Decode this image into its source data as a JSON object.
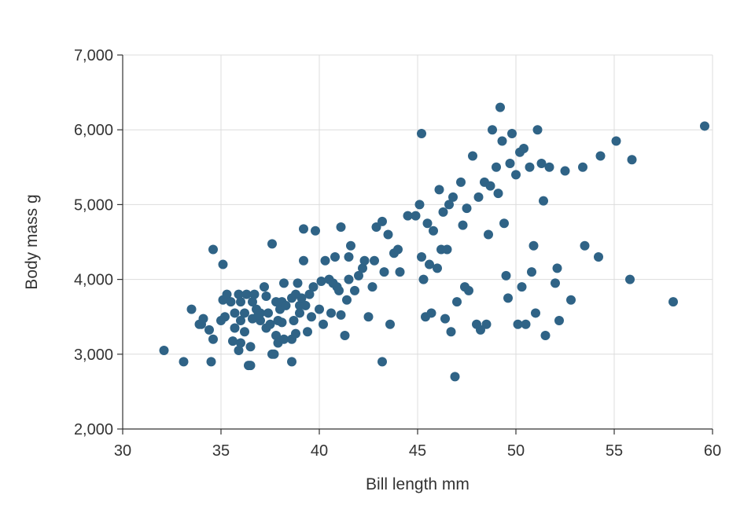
{
  "chart_data": {
    "type": "scatter",
    "xlabel": "Bill length mm",
    "ylabel": "Body mass g",
    "xlim": [
      30,
      60
    ],
    "ylim": [
      2000,
      7000
    ],
    "xticks": [
      "30",
      "35",
      "40",
      "45",
      "50",
      "55",
      "60"
    ],
    "yticks": [
      "2,000",
      "3,000",
      "4,000",
      "5,000",
      "6,000",
      "7,000"
    ],
    "grid": true,
    "point_color": "#2f6386",
    "points": [
      [
        32.1,
        3050
      ],
      [
        33.1,
        2900
      ],
      [
        33.5,
        3600
      ],
      [
        34.0,
        3400
      ],
      [
        34.1,
        3475
      ],
      [
        34.4,
        3325
      ],
      [
        34.5,
        2900
      ],
      [
        34.6,
        3200
      ],
      [
        34.6,
        4400
      ],
      [
        35.0,
        3450
      ],
      [
        35.1,
        4200
      ],
      [
        35.1,
        3725
      ],
      [
        35.3,
        3800
      ],
      [
        35.5,
        3700
      ],
      [
        35.6,
        3175
      ],
      [
        35.7,
        3350
      ],
      [
        35.7,
        3550
      ],
      [
        35.9,
        3800
      ],
      [
        35.9,
        3050
      ],
      [
        36.0,
        3150
      ],
      [
        36.0,
        3450
      ],
      [
        36.0,
        3700
      ],
      [
        36.2,
        3300
      ],
      [
        36.2,
        3550
      ],
      [
        36.3,
        3800
      ],
      [
        36.4,
        2850
      ],
      [
        36.5,
        3100
      ],
      [
        36.5,
        2850
      ],
      [
        36.6,
        3700
      ],
      [
        36.6,
        3475
      ],
      [
        36.7,
        3800
      ],
      [
        36.8,
        3600
      ],
      [
        37.0,
        3450
      ],
      [
        37.0,
        3550
      ],
      [
        37.2,
        3900
      ],
      [
        37.3,
        3775
      ],
      [
        37.3,
        3350
      ],
      [
        37.5,
        3400
      ],
      [
        37.6,
        4475
      ],
      [
        37.6,
        3000
      ],
      [
        37.7,
        3000
      ],
      [
        37.8,
        3700
      ],
      [
        37.8,
        3250
      ],
      [
        37.9,
        3150
      ],
      [
        37.9,
        3450
      ],
      [
        38.0,
        3600
      ],
      [
        38.1,
        3700
      ],
      [
        38.1,
        3425
      ],
      [
        38.2,
        3950
      ],
      [
        38.2,
        3200
      ],
      [
        38.6,
        3750
      ],
      [
        38.6,
        3200
      ],
      [
        38.6,
        2900
      ],
      [
        38.7,
        3450
      ],
      [
        38.8,
        3800
      ],
      [
        38.8,
        3275
      ],
      [
        38.9,
        3950
      ],
      [
        39.0,
        3550
      ],
      [
        39.0,
        3650
      ],
      [
        39.1,
        3750
      ],
      [
        39.2,
        4675
      ],
      [
        39.2,
        4250
      ],
      [
        39.3,
        3650
      ],
      [
        39.5,
        3800
      ],
      [
        39.6,
        3500
      ],
      [
        39.7,
        3900
      ],
      [
        39.8,
        4650
      ],
      [
        40.1,
        3975
      ],
      [
        40.2,
        3400
      ],
      [
        40.3,
        4250
      ],
      [
        40.5,
        4000
      ],
      [
        40.6,
        3550
      ],
      [
        40.7,
        3950
      ],
      [
        40.8,
        4300
      ],
      [
        40.9,
        3900
      ],
      [
        41.1,
        4700
      ],
      [
        41.1,
        3525
      ],
      [
        41.3,
        3250
      ],
      [
        41.4,
        3725
      ],
      [
        41.5,
        4300
      ],
      [
        41.5,
        4000
      ],
      [
        41.6,
        4450
      ],
      [
        42.0,
        4050
      ],
      [
        42.2,
        4150
      ],
      [
        42.3,
        4250
      ],
      [
        42.5,
        3500
      ],
      [
        42.8,
        4250
      ],
      [
        42.9,
        4700
      ],
      [
        43.2,
        4775
      ],
      [
        43.2,
        2900
      ],
      [
        43.3,
        4100
      ],
      [
        43.5,
        4600
      ],
      [
        43.8,
        4350
      ],
      [
        44.0,
        4400
      ],
      [
        44.1,
        4100
      ],
      [
        44.5,
        4850
      ],
      [
        45.1,
        5000
      ],
      [
        45.2,
        5950
      ],
      [
        45.2,
        4300
      ],
      [
        45.3,
        4000
      ],
      [
        45.4,
        3500
      ],
      [
        45.5,
        4750
      ],
      [
        45.6,
        4200
      ],
      [
        45.8,
        4650
      ],
      [
        46.0,
        4150
      ],
      [
        46.1,
        5200
      ],
      [
        46.2,
        4400
      ],
      [
        46.4,
        3475
      ],
      [
        46.5,
        4400
      ],
      [
        46.6,
        5000
      ],
      [
        46.8,
        5100
      ],
      [
        46.9,
        2700
      ],
      [
        47.0,
        3700
      ],
      [
        47.3,
        4725
      ],
      [
        47.5,
        4950
      ],
      [
        47.6,
        3850
      ],
      [
        47.8,
        5650
      ],
      [
        48.1,
        5100
      ],
      [
        48.2,
        3325
      ],
      [
        48.4,
        5300
      ],
      [
        48.5,
        3400
      ],
      [
        48.7,
        5250
      ],
      [
        48.8,
        6000
      ],
      [
        49.0,
        5500
      ],
      [
        49.1,
        5150
      ],
      [
        49.2,
        6300
      ],
      [
        49.3,
        5850
      ],
      [
        49.5,
        4050
      ],
      [
        49.6,
        3750
      ],
      [
        49.8,
        5950
      ],
      [
        50.0,
        5400
      ],
      [
        50.1,
        3400
      ],
      [
        50.2,
        5700
      ],
      [
        50.4,
        5750
      ],
      [
        50.5,
        3400
      ],
      [
        50.8,
        4100
      ],
      [
        51.0,
        3550
      ],
      [
        51.1,
        6000
      ],
      [
        51.3,
        5550
      ],
      [
        51.5,
        3250
      ],
      [
        51.7,
        5500
      ],
      [
        52.0,
        3950
      ],
      [
        52.1,
        4150
      ],
      [
        52.2,
        3450
      ],
      [
        52.5,
        5450
      ],
      [
        52.8,
        3725
      ],
      [
        53.4,
        5500
      ],
      [
        54.2,
        4300
      ],
      [
        54.3,
        5650
      ],
      [
        55.1,
        5850
      ],
      [
        55.8,
        4000
      ],
      [
        55.9,
        5600
      ],
      [
        58.0,
        3700
      ],
      [
        59.6,
        6050
      ],
      [
        33.9,
        3400
      ],
      [
        35.2,
        3500
      ],
      [
        36.9,
        3525
      ],
      [
        37.4,
        3550
      ],
      [
        38.3,
        3650
      ],
      [
        39.4,
        3300
      ],
      [
        40.0,
        3600
      ],
      [
        41.0,
        3850
      ],
      [
        41.8,
        3850
      ],
      [
        42.7,
        3900
      ],
      [
        43.6,
        3400
      ],
      [
        44.9,
        4850
      ],
      [
        45.7,
        3550
      ],
      [
        46.3,
        4900
      ],
      [
        47.2,
        5300
      ],
      [
        48.6,
        4600
      ],
      [
        49.4,
        4750
      ],
      [
        50.3,
        3900
      ],
      [
        50.7,
        5500
      ],
      [
        51.4,
        5050
      ],
      [
        53.5,
        4450
      ],
      [
        46.7,
        3300
      ],
      [
        47.4,
        3900
      ],
      [
        48.0,
        3400
      ],
      [
        49.7,
        5550
      ],
      [
        50.9,
        4450
      ]
    ]
  }
}
